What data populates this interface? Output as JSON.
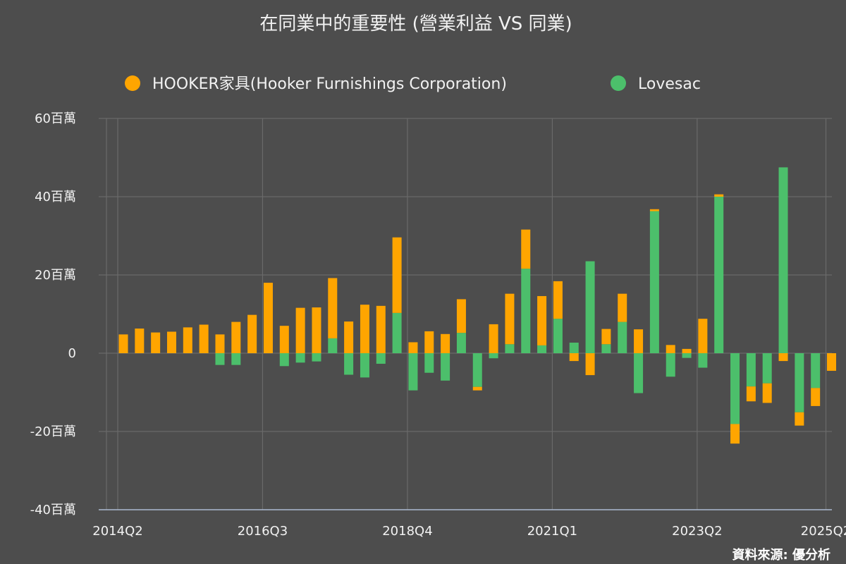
{
  "chart_data": {
    "type": "bar",
    "stacked": true,
    "title": "在同業中的重要性 (營業利益 VS 同業)",
    "source": "資料來源: 優分析",
    "ylim": [
      -40,
      60
    ],
    "y_ticks": [
      {
        "value": 60,
        "label": "60百萬"
      },
      {
        "value": 40,
        "label": "40百萬"
      },
      {
        "value": 20,
        "label": "20百萬"
      },
      {
        "value": 0,
        "label": "0"
      },
      {
        "value": -20,
        "label": "-20百萬"
      },
      {
        "value": -40,
        "label": "-40百萬"
      }
    ],
    "x_tick_labels": [
      {
        "index": 0,
        "label": "2014Q2"
      },
      {
        "index": 9,
        "label": "2016Q3"
      },
      {
        "index": 18,
        "label": "2018Q4"
      },
      {
        "index": 27,
        "label": "2021Q1"
      },
      {
        "index": 36,
        "label": "2023Q2"
      },
      {
        "index": 44,
        "label": "2025Q2"
      }
    ],
    "categories": [
      "2014Q2",
      "2014Q3",
      "2014Q4",
      "2015Q1",
      "2015Q2",
      "2015Q3",
      "2015Q4",
      "2016Q1",
      "2016Q2",
      "2016Q3",
      "2016Q4",
      "2017Q1",
      "2017Q2",
      "2017Q3",
      "2017Q4",
      "2018Q1",
      "2018Q2",
      "2018Q3",
      "2018Q4",
      "2019Q1",
      "2019Q2",
      "2019Q3",
      "2019Q4",
      "2020Q1",
      "2020Q2",
      "2020Q3",
      "2020Q4",
      "2021Q1",
      "2021Q2",
      "2021Q3",
      "2021Q4",
      "2022Q1",
      "2022Q2",
      "2022Q3",
      "2022Q4",
      "2023Q1",
      "2023Q2",
      "2023Q3",
      "2023Q4",
      "2024Q1",
      "2024Q2",
      "2024Q3",
      "2024Q4",
      "2025Q1",
      "2025Q2"
    ],
    "legend_position": "top",
    "series": [
      {
        "name": "HOOKER家具(Hooker Furnishings Corporation)",
        "color": "#ffa500",
        "values": [
          4.8,
          6.3,
          5.3,
          5.5,
          6.6,
          7.3,
          4.8,
          8.0,
          9.8,
          18.0,
          7.0,
          11.6,
          11.7,
          15.4,
          8.1,
          12.4,
          12.1,
          19.3,
          2.8,
          5.6,
          4.9,
          8.6,
          -0.9,
          7.4,
          12.9,
          10.0,
          12.6,
          9.6,
          -2.0,
          -5.6,
          3.9,
          7.2,
          6.1,
          0.5,
          2.1,
          1.1,
          8.8,
          0.6,
          -5.0,
          -3.8,
          -5.0,
          -2.0,
          -3.4,
          -4.6,
          -4.5
        ]
      },
      {
        "name": "Lovesac",
        "color": "#4cbf6b",
        "values": [
          0,
          0,
          0,
          0,
          0,
          0,
          -3.0,
          -3.0,
          0,
          0,
          -3.3,
          -2.4,
          -2.1,
          3.8,
          -5.5,
          -6.2,
          -2.7,
          10.3,
          -9.5,
          -5.0,
          -7.0,
          5.2,
          -8.6,
          -1.3,
          2.3,
          21.6,
          2.0,
          8.8,
          2.7,
          23.5,
          2.3,
          8.0,
          -10.2,
          36.3,
          -6.0,
          -1.2,
          -3.7,
          40.0,
          -18.1,
          -8.5,
          -7.7,
          47.5,
          -15.1,
          -8.9,
          0
        ]
      }
    ]
  }
}
